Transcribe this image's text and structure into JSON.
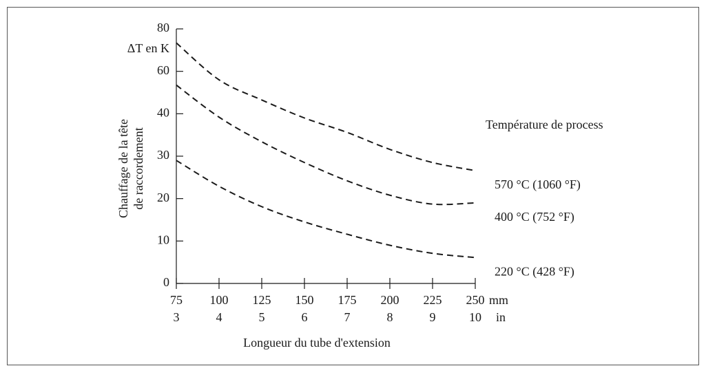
{
  "chart_data": {
    "type": "line",
    "y_label_lines": [
      "Chauffage de la tête",
      "de raccordement"
    ],
    "y_unit_label": "ΔT en K",
    "x_label": "Longueur du tube d'extension",
    "annotation": "Température de process",
    "x_unit": "mm",
    "x2_unit": "in",
    "x": [
      75,
      100,
      125,
      150,
      175,
      200,
      225,
      250
    ],
    "xlim": [
      75,
      250
    ],
    "xticks": [
      75,
      100,
      125,
      150,
      175,
      200,
      225,
      250
    ],
    "x2ticks": [
      3,
      4,
      5,
      6,
      7,
      8,
      9,
      10
    ],
    "ylim": [
      0,
      80
    ],
    "yticks": [
      0,
      10,
      20,
      30,
      40,
      60,
      80
    ],
    "series": [
      {
        "name": "570 °C (1060 °F)",
        "color": "#1a1a1a",
        "values": [
          73.4,
          56,
          46.5,
          39,
          35.6,
          31.6,
          28.5,
          26.6
        ]
      },
      {
        "name": "400 °C (752 °F)",
        "color": "#1a1a1a",
        "values": [
          53.5,
          39.2,
          33.4,
          28.5,
          24.2,
          20.8,
          18.7,
          19.0
        ]
      },
      {
        "name": "220 °C (428 °F)",
        "color": "#1a1a1a",
        "values": [
          29,
          22.9,
          18.1,
          14.5,
          11.6,
          9.0,
          7.1,
          6.1
        ]
      }
    ]
  }
}
